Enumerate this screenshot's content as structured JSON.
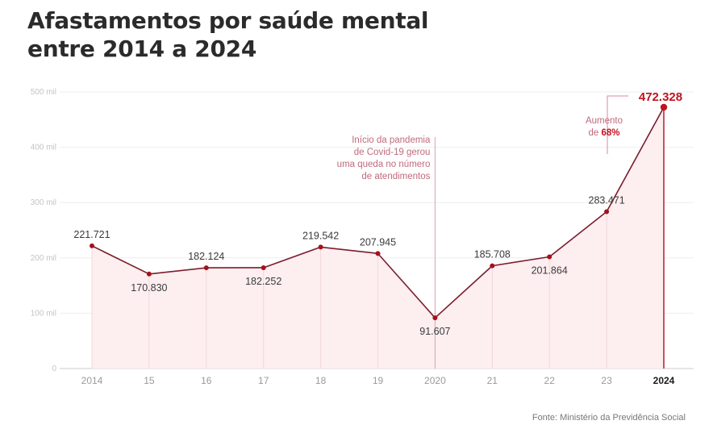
{
  "title": "Afastamentos por saúde mental entre 2014 a 2024",
  "source": "Fonte: Ministério da Previdência Social",
  "colors": {
    "line": "#7a1e2c",
    "point": "#a3121c",
    "highlight": "#c1121f",
    "fill": "#fdeef0",
    "annotation": "#c06a7d",
    "grid": "#eeeeee",
    "axis_text": "#9a9a9a"
  },
  "chart_data": {
    "type": "area",
    "title": "Afastamentos por saúde mental entre 2014 a 2024",
    "x": [
      "2014",
      "15",
      "16",
      "17",
      "18",
      "19",
      "2020",
      "21",
      "22",
      "23",
      "2024"
    ],
    "values": [
      221721,
      170830,
      182124,
      182252,
      219542,
      207945,
      91607,
      185708,
      201864,
      283471,
      472328
    ],
    "value_labels": [
      "221.721",
      "170.830",
      "182.124",
      "182.252",
      "219.542",
      "207.945",
      "91.607",
      "185.708",
      "201.864",
      "283.471",
      "472.328"
    ],
    "y_ticks": [
      0,
      100000,
      200000,
      300000,
      400000,
      500000
    ],
    "y_tick_labels": [
      "0",
      "100 mil",
      "200 mil",
      "300 mil",
      "400 mil",
      "500 mil"
    ],
    "ylim": [
      0,
      500000
    ],
    "grid": true,
    "annotations": [
      {
        "x": "2020",
        "lines": [
          "Início da pandemia",
          "de Covid-19 gerou",
          "uma queda no número",
          "de atendimentos"
        ]
      },
      {
        "x": "2024",
        "lines": [
          "Aumento",
          "de "
        ],
        "highlight": "68%"
      }
    ]
  }
}
